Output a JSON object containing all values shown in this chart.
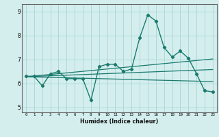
{
  "title": "",
  "xlabel": "Humidex (Indice chaleur)",
  "ylabel": "",
  "bg_color": "#d4eeee",
  "grid_color": "#add8d8",
  "line_color": "#1a7a6e",
  "xlim": [
    -0.5,
    23.5
  ],
  "ylim": [
    4.8,
    9.3
  ],
  "xticks": [
    0,
    1,
    2,
    3,
    4,
    5,
    6,
    7,
    8,
    9,
    10,
    11,
    12,
    13,
    14,
    15,
    16,
    17,
    18,
    19,
    20,
    21,
    22,
    23
  ],
  "yticks": [
    5,
    6,
    7,
    8,
    9
  ],
  "main_x": [
    0,
    1,
    2,
    3,
    4,
    5,
    6,
    7,
    8,
    9,
    10,
    11,
    12,
    13,
    14,
    15,
    16,
    17,
    18,
    19,
    20,
    21,
    22,
    23
  ],
  "main_y": [
    6.3,
    6.3,
    5.9,
    6.4,
    6.5,
    6.2,
    6.2,
    6.2,
    5.3,
    6.7,
    6.8,
    6.8,
    6.5,
    6.6,
    7.9,
    8.85,
    8.6,
    7.5,
    7.1,
    7.35,
    7.05,
    6.4,
    5.7,
    5.65
  ],
  "line1_x": [
    0,
    23
  ],
  "line1_y": [
    6.28,
    7.02
  ],
  "line2_x": [
    0,
    23
  ],
  "line2_y": [
    6.28,
    6.58
  ],
  "line3_x": [
    0,
    23
  ],
  "line3_y": [
    6.28,
    6.08
  ]
}
